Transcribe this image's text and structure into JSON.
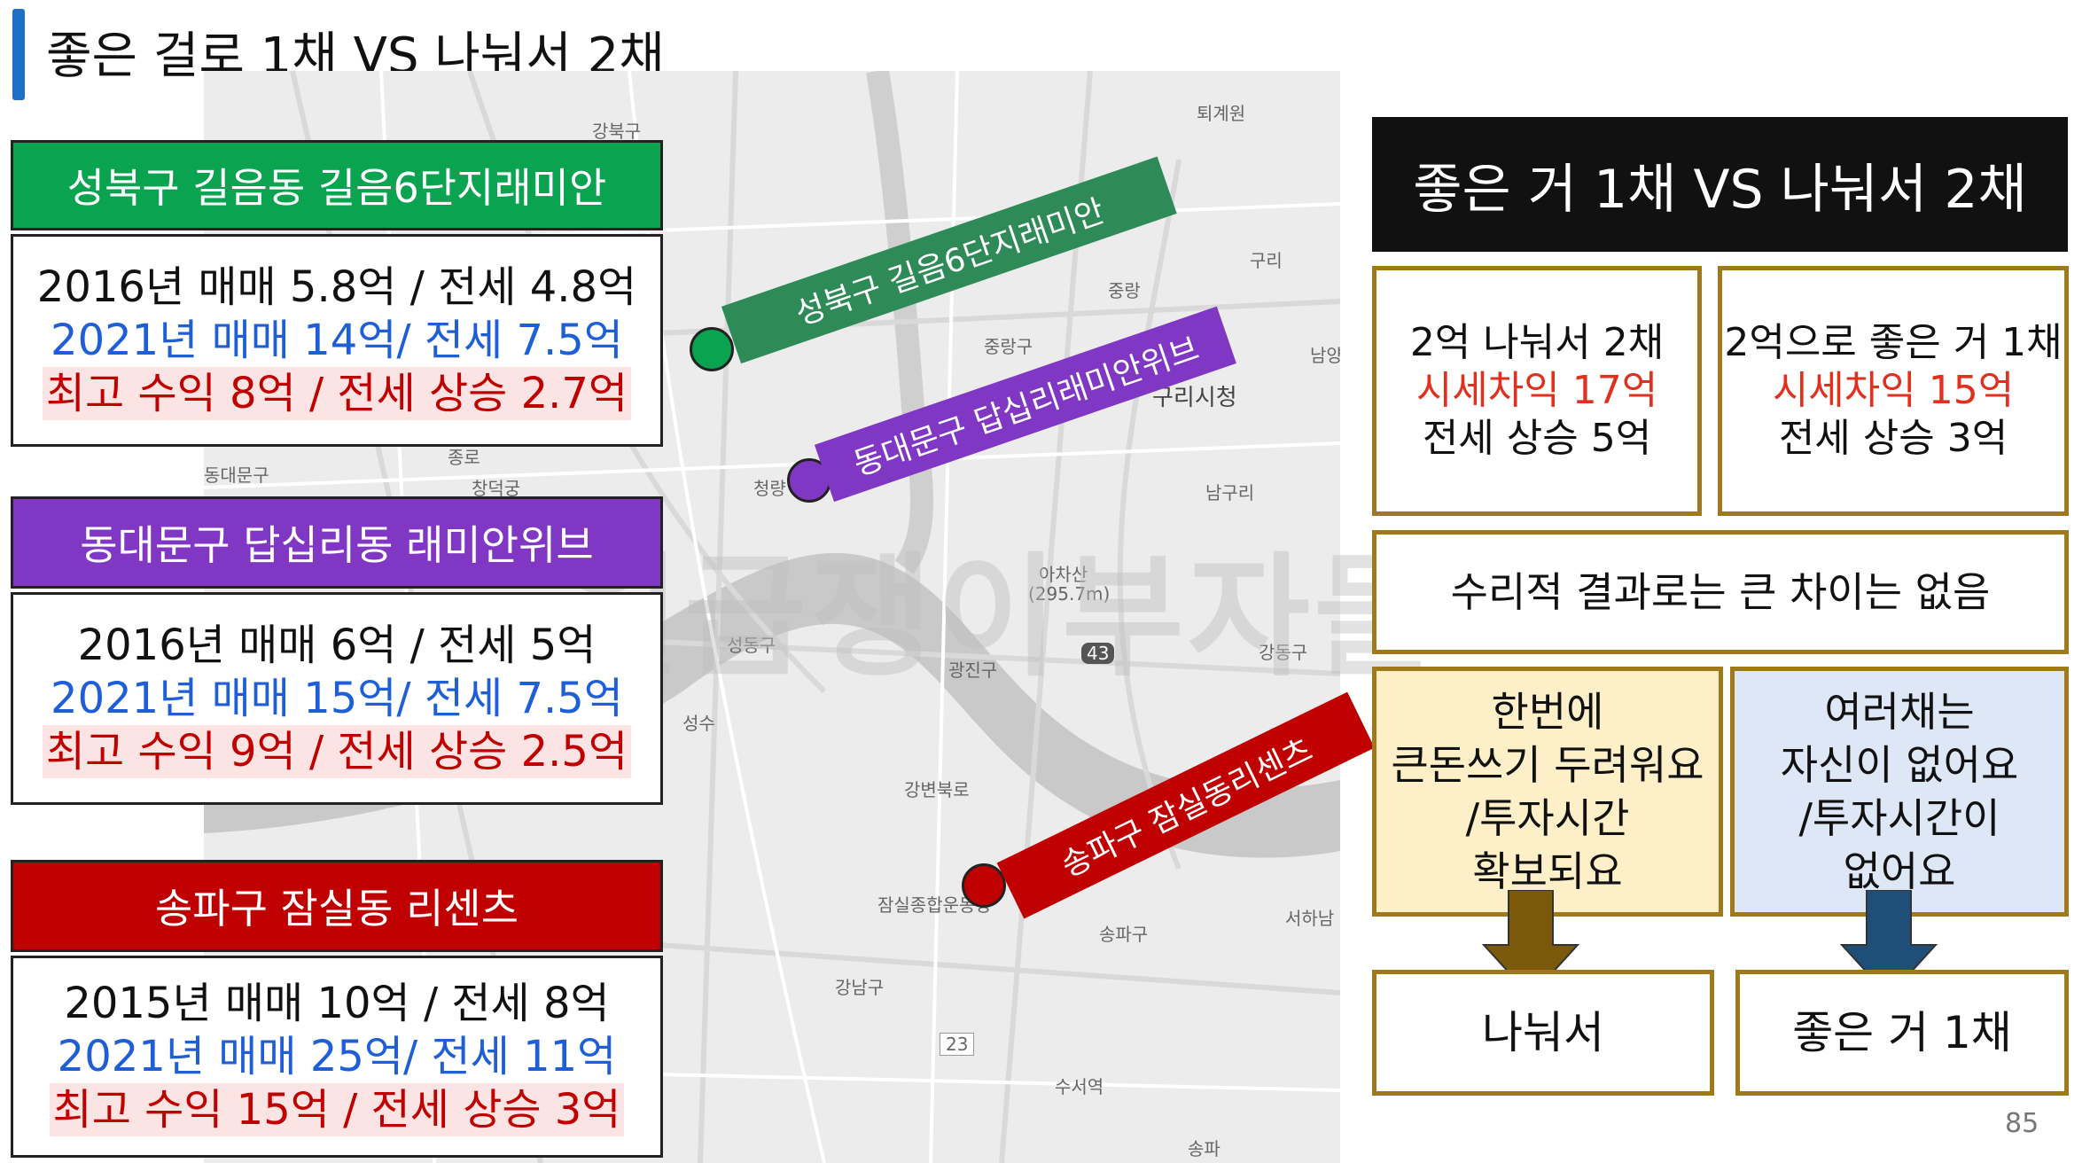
{
  "title": "좋은 걸로 1채 VS 나눠서 2채",
  "map_labels": [
    "강북구",
    "퇴계원",
    "구리",
    "중랑",
    "중랑구",
    "구리시청",
    "남양",
    "남구리",
    "동대문구",
    "종로",
    "창덕궁",
    "청량",
    "아차산",
    "(295.7m)",
    "성동구",
    "광진구",
    "강동구",
    "성수",
    "43",
    "강변북로",
    "서하남",
    "잠실종합운동장",
    "송파구",
    "강남구",
    "23",
    "수서역",
    "송파"
  ],
  "watermark": "월급쟁이부자들",
  "properties": [
    {
      "header": "성북구 길음동 길음6단지래미안",
      "tag": "성북구 길음6단지래미안",
      "line1": "2016년  매매 5.8억 / 전세 4.8억",
      "line2": "2021년 매매  14억/ 전세 7.5억",
      "line3": "최고 수익  8억 / 전세 상승 2.7억",
      "color": "#0aa350"
    },
    {
      "header": "동대문구 답십리동 래미안위브",
      "tag": "동대문구 답십리래미안위브",
      "line1": "2016년  매매 6억 / 전세 5억",
      "line2": "2021년 매매  15억/ 전세 7.5억",
      "line3": "최고 수익  9억 / 전세 상승 2.5억",
      "color": "#8038c4"
    },
    {
      "header": "송파구 잠실동  리센츠",
      "tag": "송파구 잠실동리센츠",
      "line1": "2015년  매매 10억 / 전세 8억",
      "line2": "2021년 매매  25억/ 전세 11억",
      "line3": "최고 수익  15억 / 전세 상승 3억",
      "color": "#c00000"
    }
  ],
  "right": {
    "title": "좋은 거 1채 VS 나눠서 2채",
    "left_box": {
      "line1": "2억 나눠서 2채",
      "line2": "시세차익 17억",
      "line3": "전세 상승 5억"
    },
    "right_box": {
      "line1": "2억으로 좋은 거 1채",
      "line2": "시세차익 15억",
      "line3": "전세 상승 3억"
    },
    "summary": "수리적 결과로는   큰 차이는 없음",
    "left_reason": {
      "line1": "한번에",
      "line2": "큰돈쓰기 두려워요",
      "line3": "/투자시간",
      "line4": "확보되요"
    },
    "right_reason": {
      "line1": "여러채는",
      "line2": "자신이 없어요",
      "line3": "/투자시간이",
      "line4": "없어요"
    },
    "left_result": "나눠서",
    "right_result": "좋은 거 1채"
  },
  "page_number": "85",
  "colors": {
    "accent_blue": "#1f6fc5",
    "gold_border": "#a07a1a",
    "left_arrow": "#7a5a0a",
    "right_arrow": "#1f4e79"
  }
}
